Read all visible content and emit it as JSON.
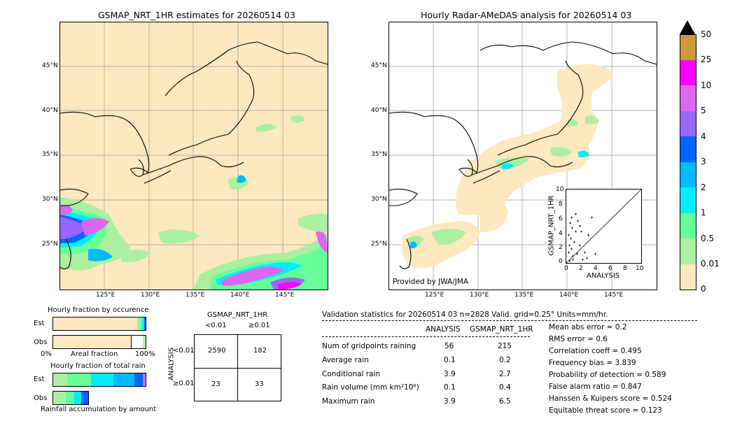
{
  "left_map": {
    "title": "GSMAP_NRT_1HR estimates for 20260514 03",
    "lat_labels": [
      "45°N",
      "40°N",
      "35°N",
      "30°N",
      "25°N"
    ],
    "lon_labels": [
      "125°E",
      "130°E",
      "135°E",
      "140°E",
      "145°E"
    ]
  },
  "right_map": {
    "title": "Hourly Radar-AMeDAS analysis for 20260514 03",
    "lat_labels": [
      "45°N",
      "40°N",
      "35°N",
      "30°N",
      "25°N"
    ],
    "lon_labels": [
      "125°E",
      "130°E",
      "135°E",
      "140°E",
      "145°E"
    ],
    "credit": "Provided by JWA/JMA",
    "inset": {
      "xlabel": "ANALYSIS",
      "ylabel": "GSMAP_NRT_1HR",
      "ticks": [
        "0",
        "2",
        "4",
        "6",
        "8",
        "10"
      ]
    }
  },
  "colorbar": {
    "labels": [
      "50",
      "25",
      "10",
      "5",
      "4",
      "3",
      "2",
      "1",
      "0.5",
      "0.01",
      "0"
    ],
    "colors": [
      "#cc9a3a",
      "#ff00ff",
      "#dd66ee",
      "#9966ff",
      "#0066ff",
      "#00bbff",
      "#00eeff",
      "#66ff99",
      "#aaf0a0",
      "#fde8bf"
    ]
  },
  "occurrence": {
    "title": "Hourly fraction by occurence",
    "row_est": "Est",
    "row_obs": "Obs",
    "axis_left": "0%",
    "axis_mid": "Areal fraction",
    "axis_right": "100%"
  },
  "total_rain": {
    "title": "Hourly fraction of total rain",
    "row_est": "Est",
    "row_obs": "Obs",
    "footer": "Rainfall accumulation by amount"
  },
  "contingency": {
    "title": "GSMAP_NRT_1HR",
    "col1": "<0.01",
    "col2": "≥0.01",
    "side": "ANALYSIS",
    "row1": "<0.01",
    "row2": "≥0.01",
    "cells": [
      "2590",
      "182",
      "23",
      "33"
    ]
  },
  "validation": {
    "header": "Validation statistics for 20260514 03  n=2828 Valid. grid=0.25° Units=mm/hr.",
    "col_a": "ANALYSIS",
    "col_b": "GSMAP_NRT_1HR",
    "rows": [
      {
        "label": "Num of gridpoints raining",
        "a": "56",
        "b": "215"
      },
      {
        "label": "Average rain",
        "a": "0.1",
        "b": "0.2"
      },
      {
        "label": "Conditional rain",
        "a": "3.9",
        "b": "2.7"
      },
      {
        "label": "Rain volume (mm km²10⁶)",
        "a": "0.1",
        "b": "0.4"
      },
      {
        "label": "Maximum rain",
        "a": "3.9",
        "b": "6.5"
      }
    ],
    "scores": [
      "Mean abs error =    0.2",
      "RMS error =    0.6",
      "Correlation coeff =  0.495",
      "Frequency bias =  3.839",
      "Probability of detection =  0.589",
      "False alarm ratio =  0.847",
      "Hanssen & Kuipers score =  0.524",
      "Equitable threat score =  0.123"
    ]
  }
}
